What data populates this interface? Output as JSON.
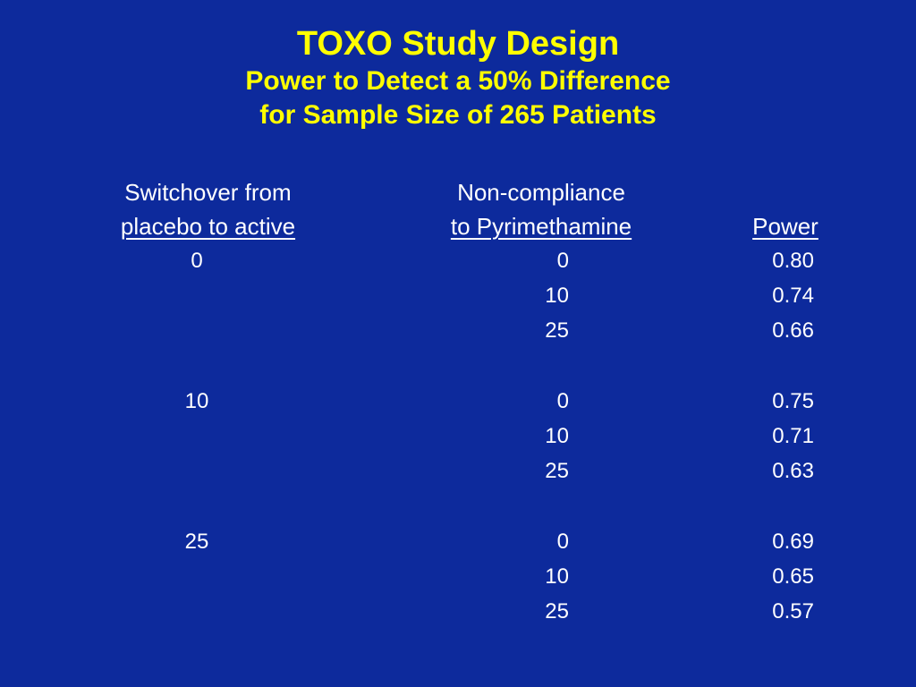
{
  "title": {
    "main": "TOXO Study Design",
    "line2": "Power to Detect a 50% Difference",
    "line3": "for Sample Size of 265 Patients"
  },
  "table": {
    "headers": {
      "switchover_line1": "Switchover from",
      "switchover_line2": "placebo to active",
      "noncompliance_line1": "Non-compliance",
      "noncompliance_line2": "to Pyrimethamine",
      "power": "Power"
    },
    "groups": [
      {
        "switchover": "0",
        "rows": [
          {
            "noncompliance": "0",
            "power": "0.80"
          },
          {
            "noncompliance": "10",
            "power": "0.74"
          },
          {
            "noncompliance": "25",
            "power": "0.66"
          }
        ]
      },
      {
        "switchover": "10",
        "rows": [
          {
            "noncompliance": "0",
            "power": "0.75"
          },
          {
            "noncompliance": "10",
            "power": "0.71"
          },
          {
            "noncompliance": "25",
            "power": "0.63"
          }
        ]
      },
      {
        "switchover": "25",
        "rows": [
          {
            "noncompliance": "0",
            "power": "0.69"
          },
          {
            "noncompliance": "10",
            "power": "0.65"
          },
          {
            "noncompliance": "25",
            "power": "0.57"
          }
        ]
      }
    ]
  },
  "colors": {
    "background": "#0d2a9c",
    "title": "#ffff00",
    "text": "#ffffff"
  }
}
